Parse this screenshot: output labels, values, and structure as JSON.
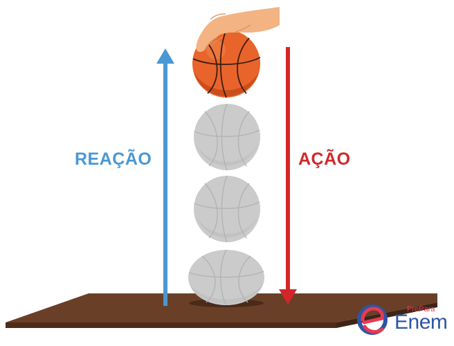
{
  "labels": {
    "reaction": "REAÇÃO",
    "action": "AÇÃO"
  },
  "logo": {
    "small_text": "PrePara",
    "big_text": "Enem",
    "icon": "prepara-enem-logo-icon"
  },
  "colors": {
    "reaction_arrow": "#4a98d3",
    "action_arrow": "#d3262a",
    "ball": "#e9642b",
    "ghost_ball": "#c9c9c9",
    "table": "#6a3f28",
    "logo_blue": "#2e55a3",
    "logo_pink": "#e73a55"
  }
}
